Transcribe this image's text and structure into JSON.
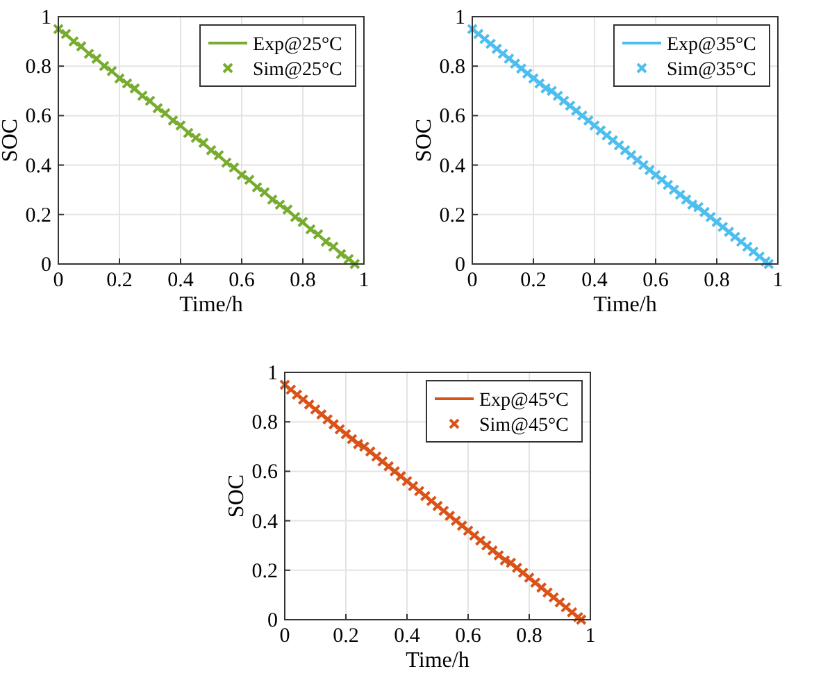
{
  "chart_data": [
    {
      "type": "line",
      "xlabel": "Time/h",
      "ylabel": "SOC",
      "xlim": [
        0,
        1
      ],
      "xticks": [
        0,
        0.2,
        0.4,
        0.6,
        0.8,
        1
      ],
      "ylim": [
        0,
        1
      ],
      "yticks": [
        0,
        0.2,
        0.4,
        0.6,
        0.8,
        1
      ],
      "grid": true,
      "legend": "top right",
      "series": [
        {
          "name": "Exp@25°C",
          "color": "#77ac30",
          "marker": "none",
          "x": [
            0,
            0.97
          ],
          "values": [
            0.95,
            0
          ]
        },
        {
          "name": "Sim@25°C",
          "type": "scatter",
          "color": "#77ac30",
          "marker": "cross",
          "x": [
            0,
            0.025,
            0.05,
            0.075,
            0.1,
            0.125,
            0.15,
            0.175,
            0.2,
            0.225,
            0.25,
            0.275,
            0.3,
            0.325,
            0.35,
            0.375,
            0.4,
            0.425,
            0.45,
            0.475,
            0.5,
            0.525,
            0.55,
            0.575,
            0.6,
            0.625,
            0.65,
            0.675,
            0.7,
            0.725,
            0.75,
            0.775,
            0.8,
            0.825,
            0.85,
            0.875,
            0.9,
            0.925,
            0.95,
            0.97
          ],
          "values": [
            0.95,
            0.93,
            0.9,
            0.88,
            0.85,
            0.83,
            0.8,
            0.78,
            0.75,
            0.73,
            0.71,
            0.68,
            0.66,
            0.63,
            0.61,
            0.58,
            0.56,
            0.53,
            0.51,
            0.49,
            0.46,
            0.44,
            0.41,
            0.39,
            0.36,
            0.34,
            0.31,
            0.29,
            0.26,
            0.24,
            0.22,
            0.19,
            0.17,
            0.14,
            0.12,
            0.09,
            0.07,
            0.04,
            0.02,
            0
          ]
        }
      ]
    },
    {
      "type": "line",
      "xlabel": "Time/h",
      "ylabel": "SOC",
      "xlim": [
        0,
        1
      ],
      "xticks": [
        0,
        0.2,
        0.4,
        0.6,
        0.8,
        1
      ],
      "ylim": [
        0,
        1
      ],
      "yticks": [
        0,
        0.2,
        0.4,
        0.6,
        0.8,
        1
      ],
      "grid": true,
      "legend": "top right",
      "series": [
        {
          "name": "Exp@35°C",
          "color": "#4dbeee",
          "marker": "none",
          "x": [
            0,
            0.97
          ],
          "values": [
            0.95,
            0
          ]
        },
        {
          "name": "Sim@35°C",
          "type": "scatter",
          "color": "#4dbeee",
          "marker": "cross",
          "x": [
            0,
            0.02,
            0.04,
            0.06,
            0.08,
            0.1,
            0.12,
            0.14,
            0.16,
            0.18,
            0.2,
            0.22,
            0.24,
            0.26,
            0.28,
            0.3,
            0.32,
            0.34,
            0.36,
            0.38,
            0.4,
            0.42,
            0.44,
            0.46,
            0.48,
            0.5,
            0.52,
            0.54,
            0.56,
            0.58,
            0.6,
            0.62,
            0.64,
            0.66,
            0.68,
            0.7,
            0.72,
            0.74,
            0.76,
            0.78,
            0.8,
            0.82,
            0.84,
            0.86,
            0.88,
            0.9,
            0.92,
            0.94,
            0.96,
            0.97
          ],
          "values": [
            0.95,
            0.93,
            0.91,
            0.89,
            0.87,
            0.85,
            0.83,
            0.81,
            0.79,
            0.77,
            0.75,
            0.73,
            0.71,
            0.7,
            0.68,
            0.66,
            0.64,
            0.62,
            0.6,
            0.58,
            0.56,
            0.54,
            0.52,
            0.5,
            0.48,
            0.46,
            0.44,
            0.42,
            0.4,
            0.38,
            0.36,
            0.34,
            0.32,
            0.3,
            0.28,
            0.26,
            0.24,
            0.23,
            0.21,
            0.19,
            0.17,
            0.15,
            0.13,
            0.11,
            0.09,
            0.07,
            0.05,
            0.03,
            0.01,
            0
          ]
        }
      ]
    },
    {
      "type": "line",
      "xlabel": "Time/h",
      "ylabel": "SOC",
      "xlim": [
        0,
        1
      ],
      "xticks": [
        0,
        0.2,
        0.4,
        0.6,
        0.8,
        1
      ],
      "ylim": [
        0,
        1
      ],
      "yticks": [
        0,
        0.2,
        0.4,
        0.6,
        0.8,
        1
      ],
      "grid": true,
      "legend": "top right",
      "series": [
        {
          "name": "Exp@45°C",
          "color": "#d95319",
          "marker": "none",
          "x": [
            0,
            0.97
          ],
          "values": [
            0.95,
            0
          ]
        },
        {
          "name": "Sim@45°C",
          "type": "scatter",
          "color": "#d95319",
          "marker": "cross",
          "x": [
            0,
            0.02,
            0.04,
            0.06,
            0.08,
            0.1,
            0.12,
            0.14,
            0.16,
            0.18,
            0.2,
            0.22,
            0.24,
            0.26,
            0.28,
            0.3,
            0.32,
            0.34,
            0.36,
            0.38,
            0.4,
            0.42,
            0.44,
            0.46,
            0.48,
            0.5,
            0.52,
            0.54,
            0.56,
            0.58,
            0.6,
            0.62,
            0.64,
            0.66,
            0.68,
            0.7,
            0.72,
            0.74,
            0.76,
            0.78,
            0.8,
            0.82,
            0.84,
            0.86,
            0.88,
            0.9,
            0.92,
            0.94,
            0.96,
            0.97
          ],
          "values": [
            0.95,
            0.93,
            0.91,
            0.89,
            0.87,
            0.85,
            0.83,
            0.81,
            0.79,
            0.77,
            0.75,
            0.73,
            0.71,
            0.7,
            0.68,
            0.66,
            0.64,
            0.62,
            0.6,
            0.58,
            0.56,
            0.54,
            0.52,
            0.5,
            0.48,
            0.46,
            0.44,
            0.42,
            0.4,
            0.38,
            0.36,
            0.34,
            0.32,
            0.3,
            0.28,
            0.26,
            0.24,
            0.23,
            0.21,
            0.19,
            0.17,
            0.15,
            0.13,
            0.11,
            0.09,
            0.07,
            0.05,
            0.03,
            0.01,
            0
          ]
        }
      ]
    }
  ]
}
